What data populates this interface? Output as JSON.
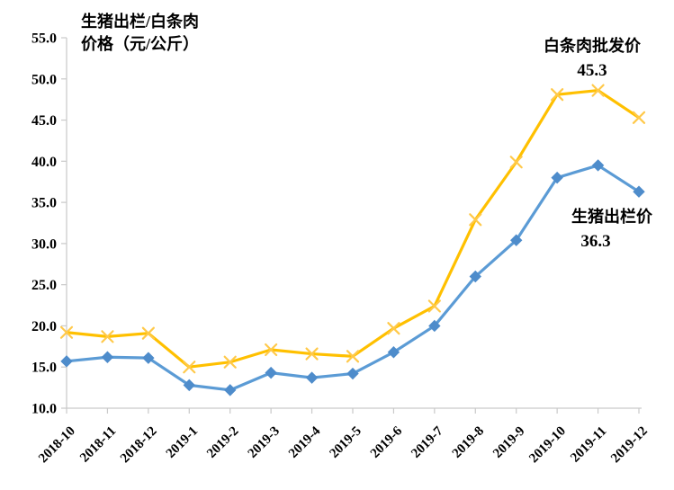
{
  "chart_data": {
    "type": "line",
    "title_line1": "生猪出栏/白条肉",
    "title_line2": "价格（元/公斤）",
    "categories": [
      "2018-10",
      "2018-11",
      "2018-12",
      "2019-1",
      "2019-2",
      "2019-3",
      "2019-4",
      "2019-5",
      "2019-6",
      "2019-7",
      "2019-8",
      "2019-9",
      "2019-10",
      "2019-11",
      "2019-12"
    ],
    "series": [
      {
        "name": "白条肉批发价",
        "marker": "x",
        "color": "#FFC000",
        "marker_color": "#FFC94A",
        "values": [
          19.2,
          18.7,
          19.1,
          15.0,
          15.6,
          17.1,
          16.6,
          16.3,
          19.7,
          22.4,
          32.9,
          39.9,
          48.1,
          48.6,
          45.3
        ]
      },
      {
        "name": "生猪出栏价",
        "marker": "diamond",
        "color": "#5B9BD5",
        "marker_color": "#4E8CCB",
        "values": [
          15.7,
          16.2,
          16.1,
          12.8,
          12.2,
          14.3,
          13.7,
          14.2,
          16.8,
          20.0,
          26.0,
          30.4,
          38.0,
          39.5,
          36.3
        ]
      }
    ],
    "ylim": [
      10.0,
      55.0
    ],
    "ytick_step": 5.0,
    "ytick_format_decimals": 1,
    "grid": false,
    "legend_position": "none",
    "annotations": [
      {
        "label": "白条肉批发价",
        "value_label": "45.3"
      },
      {
        "label": "生猪出栏价",
        "value_label": "36.3"
      }
    ],
    "axis_color": "#c9c9c9",
    "text_color": "#000000",
    "background_color": "#ffffff"
  }
}
